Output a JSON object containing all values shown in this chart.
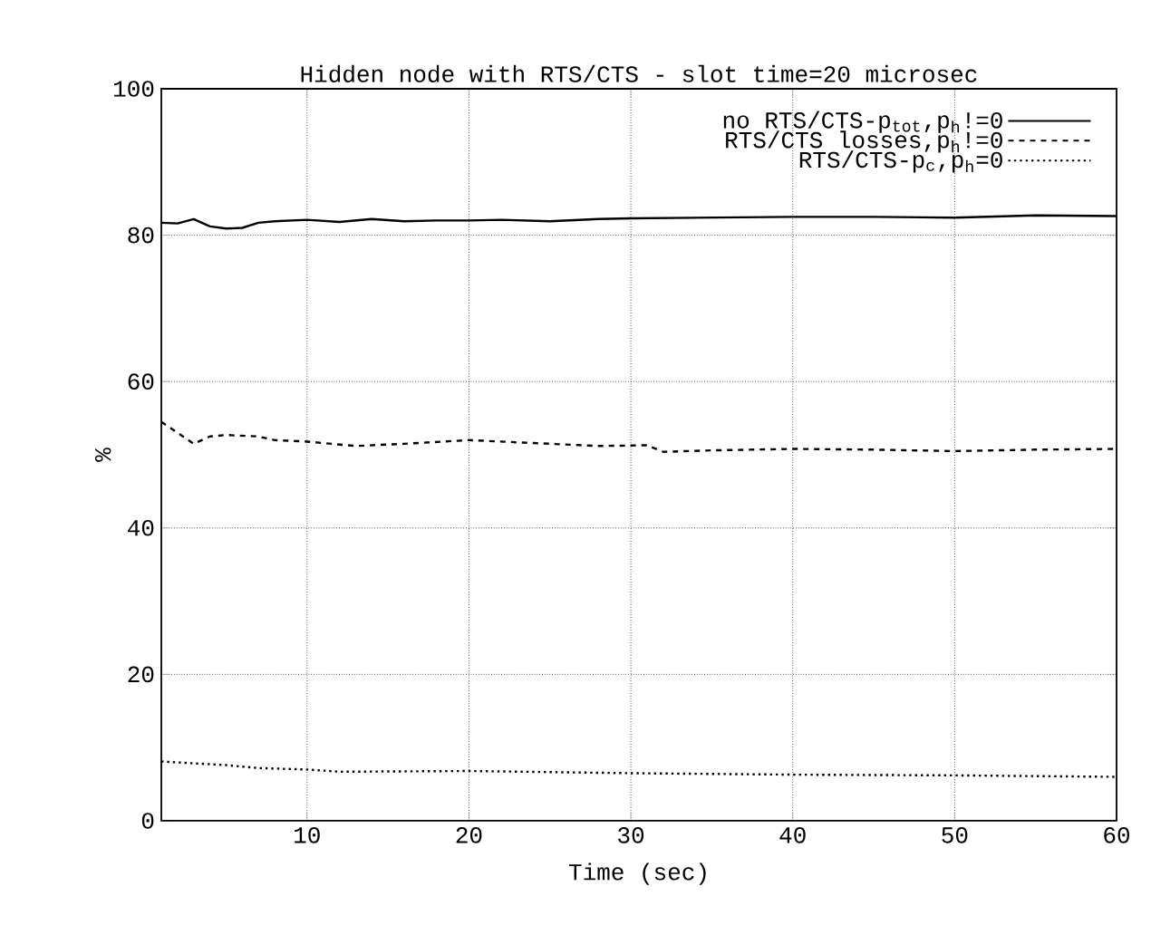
{
  "chart_data": {
    "type": "line",
    "title": "Hidden node with RTS/CTS - slot time=20 microsec",
    "xlabel": "Time (sec)",
    "ylabel": "%",
    "xlim": [
      1,
      60
    ],
    "xticks": [
      10,
      20,
      30,
      40,
      50,
      60
    ],
    "ylim": [
      0,
      100
    ],
    "yticks": [
      0,
      20,
      40,
      60,
      80,
      100
    ],
    "grid": true,
    "legend": "top right",
    "marker": "none",
    "series": [
      {
        "name": "no RTS/CTS-p$_{tot}$,p$_{h}$!=0",
        "color": "#000000",
        "line_style": "solid",
        "x": [
          1,
          2,
          3,
          4,
          5,
          6,
          7,
          8,
          10,
          12,
          14,
          16,
          18,
          20,
          22,
          25,
          28,
          30,
          35,
          40,
          45,
          50,
          55,
          60
        ],
        "values": [
          81.7,
          81.6,
          82.2,
          81.2,
          80.9,
          81.0,
          81.7,
          81.9,
          82.1,
          81.8,
          82.2,
          81.9,
          82.0,
          82.0,
          82.1,
          81.9,
          82.2,
          82.3,
          82.4,
          82.5,
          82.5,
          82.4,
          82.7,
          82.6
        ]
      },
      {
        "name": "RTS/CTS losses,p$_{h}$!=0",
        "color": "#000000",
        "line_style": "dashed",
        "x": [
          1,
          2,
          3,
          4,
          5,
          7,
          8,
          10,
          13,
          16,
          20,
          25,
          28,
          31,
          32,
          35,
          40,
          45,
          50,
          55,
          60
        ],
        "values": [
          54.5,
          53.0,
          51.5,
          52.5,
          52.7,
          52.5,
          52.0,
          51.8,
          51.2,
          51.5,
          52.0,
          51.5,
          51.2,
          51.3,
          50.4,
          50.6,
          50.8,
          50.7,
          50.5,
          50.7,
          50.8
        ]
      },
      {
        "name": "RTS/CTS-p$_{c}$,p$_{h}$=0",
        "color": "#000000",
        "line_style": "dotted",
        "x": [
          1,
          5,
          7,
          10,
          12,
          20,
          30,
          40,
          50,
          60
        ],
        "values": [
          8.1,
          7.6,
          7.2,
          7.0,
          6.7,
          6.8,
          6.5,
          6.3,
          6.2,
          6.0
        ]
      }
    ]
  }
}
